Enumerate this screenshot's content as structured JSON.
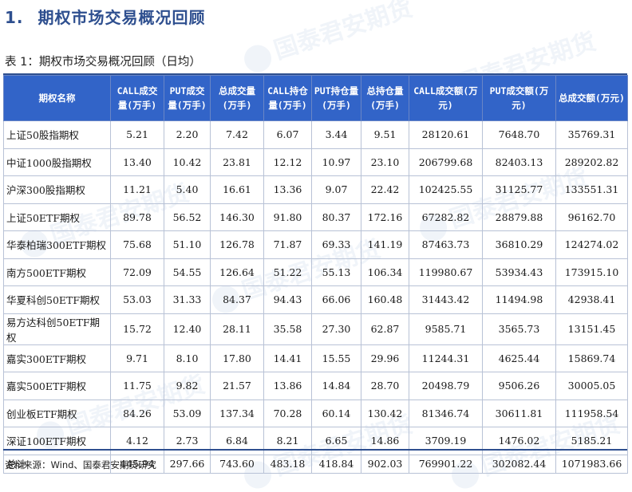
{
  "page": {
    "section_number": "1.",
    "section_title": "期权市场交易概况回顾",
    "table_caption": "表 1：期权市场交易概况回顾（日均）",
    "source": "资料来源：Wind、国泰君安期货研究",
    "watermark_text": "国泰君安期货"
  },
  "table": {
    "headers": [
      "期权名称",
      "CALL成交量(万手)",
      "PUT成交量(万手)",
      "总成交量(万手)",
      "CALL持仓量(万手)",
      "PUT持仓量(万手)",
      "总持仓量(万手)",
      "CALL成交额(万元)",
      "PUT成交额(万元)",
      "总成交额(万元)"
    ],
    "rows": [
      [
        "上证50股指期权",
        "5.21",
        "2.20",
        "7.42",
        "6.07",
        "3.44",
        "9.51",
        "28120.61",
        "7648.70",
        "35769.31"
      ],
      [
        "中证1000股指期权",
        "13.40",
        "10.42",
        "23.81",
        "12.12",
        "10.97",
        "23.10",
        "206799.68",
        "82403.13",
        "289202.82"
      ],
      [
        "沪深300股指期权",
        "11.21",
        "5.40",
        "16.61",
        "13.36",
        "9.07",
        "22.42",
        "102425.55",
        "31125.77",
        "133551.31"
      ],
      [
        "上证50ETF期权",
        "89.78",
        "56.52",
        "146.30",
        "91.80",
        "80.37",
        "172.16",
        "67282.82",
        "28879.88",
        "96162.70"
      ],
      [
        "华泰柏瑞300ETF期权",
        "75.68",
        "51.10",
        "126.78",
        "71.87",
        "69.33",
        "141.19",
        "87463.73",
        "36810.29",
        "124274.02"
      ],
      [
        "南方500ETF期权",
        "72.09",
        "54.55",
        "126.64",
        "51.22",
        "55.13",
        "106.34",
        "119980.67",
        "53934.43",
        "173915.10"
      ],
      [
        "华夏科创50ETF期权",
        "53.03",
        "31.33",
        "84.37",
        "94.43",
        "66.06",
        "160.48",
        "31443.42",
        "11494.98",
        "42938.41"
      ],
      [
        "易方达科创50ETF期权",
        "15.72",
        "12.40",
        "28.11",
        "35.58",
        "27.30",
        "62.87",
        "9585.71",
        "3565.73",
        "13151.45"
      ],
      [
        "嘉实300ETF期权",
        "9.71",
        "8.10",
        "17.80",
        "14.41",
        "15.55",
        "29.96",
        "11244.31",
        "4625.44",
        "15869.74"
      ],
      [
        "嘉实500ETF期权",
        "11.75",
        "9.82",
        "21.57",
        "13.86",
        "14.84",
        "28.70",
        "20498.79",
        "9506.26",
        "30005.05"
      ],
      [
        "创业板ETF期权",
        "84.26",
        "53.09",
        "137.34",
        "70.28",
        "60.14",
        "130.42",
        "81346.74",
        "30611.81",
        "111958.54"
      ],
      [
        "深证100ETF期权",
        "4.12",
        "2.73",
        "6.84",
        "8.21",
        "6.65",
        "14.86",
        "3709.19",
        "1476.02",
        "5185.21"
      ],
      [
        "总计",
        "445.94",
        "297.66",
        "743.60",
        "483.18",
        "418.84",
        "902.03",
        "769901.22",
        "302082.44",
        "1071983.66"
      ]
    ]
  },
  "colors": {
    "header_bg": "#3264c8",
    "title_color": "#2e4f8f",
    "rule_color": "#2e4f8f"
  }
}
